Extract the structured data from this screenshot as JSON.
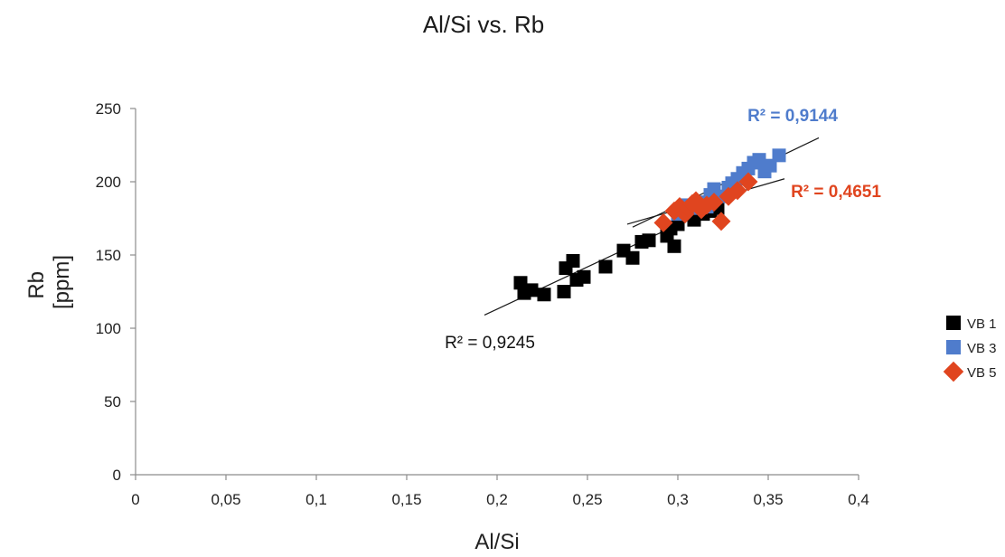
{
  "chart_data": {
    "type": "scatter",
    "title": "Al/Si vs. Rb",
    "xlabel": "Al/Si",
    "ylabel_lines": [
      "Rb",
      "[ppm]"
    ],
    "xlim": [
      0,
      0.4
    ],
    "ylim": [
      0,
      250
    ],
    "x_ticks": [
      0,
      0.05,
      0.1,
      0.15,
      0.2,
      0.25,
      0.3,
      0.35,
      0.4
    ],
    "x_tick_labels": [
      "0",
      "0,05",
      "0,1",
      "0,15",
      "0,2",
      "0,25",
      "0,3",
      "0,35",
      "0,4"
    ],
    "y_ticks": [
      0,
      50,
      100,
      150,
      200,
      250
    ],
    "y_tick_labels": [
      "0",
      "50",
      "100",
      "150",
      "200",
      "250"
    ],
    "grid": false,
    "legend_position": "right",
    "series": [
      {
        "name": "VB 1",
        "marker": "square",
        "color": "#000000",
        "points": [
          [
            0.213,
            131
          ],
          [
            0.215,
            124
          ],
          [
            0.219,
            126
          ],
          [
            0.226,
            123
          ],
          [
            0.237,
            125
          ],
          [
            0.238,
            141
          ],
          [
            0.242,
            146
          ],
          [
            0.244,
            133
          ],
          [
            0.248,
            135
          ],
          [
            0.26,
            142
          ],
          [
            0.27,
            153
          ],
          [
            0.275,
            148
          ],
          [
            0.28,
            159
          ],
          [
            0.284,
            160
          ],
          [
            0.294,
            163
          ],
          [
            0.296,
            168
          ],
          [
            0.298,
            156
          ],
          [
            0.3,
            171
          ],
          [
            0.309,
            174
          ],
          [
            0.314,
            178
          ],
          [
            0.318,
            180
          ],
          [
            0.322,
            182
          ]
        ],
        "trendline": {
          "x": [
            0.193,
            0.323
          ],
          "y": [
            109,
            184
          ]
        },
        "r2_label": "R² = 0,9245"
      },
      {
        "name": "VB 3",
        "marker": "square",
        "color": "#4f7ccc",
        "points": [
          [
            0.3,
            178
          ],
          [
            0.305,
            184
          ],
          [
            0.31,
            182
          ],
          [
            0.312,
            186
          ],
          [
            0.316,
            183
          ],
          [
            0.318,
            191
          ],
          [
            0.32,
            195
          ],
          [
            0.325,
            190
          ],
          [
            0.328,
            196
          ],
          [
            0.33,
            199
          ],
          [
            0.333,
            202
          ],
          [
            0.336,
            206
          ],
          [
            0.339,
            209
          ],
          [
            0.342,
            213
          ],
          [
            0.345,
            215
          ],
          [
            0.348,
            207
          ],
          [
            0.351,
            211
          ],
          [
            0.356,
            218
          ]
        ],
        "trendline": {
          "x": [
            0.275,
            0.378
          ],
          "y": [
            169,
            230
          ]
        },
        "r2_label": "R² = 0,9144"
      },
      {
        "name": "VB 5",
        "marker": "diamond",
        "color": "#e0451f",
        "points": [
          [
            0.292,
            172
          ],
          [
            0.298,
            180
          ],
          [
            0.301,
            183
          ],
          [
            0.304,
            178
          ],
          [
            0.306,
            182
          ],
          [
            0.308,
            185
          ],
          [
            0.31,
            187
          ],
          [
            0.313,
            181
          ],
          [
            0.316,
            184
          ],
          [
            0.32,
            186
          ],
          [
            0.324,
            173
          ],
          [
            0.328,
            190
          ],
          [
            0.333,
            194
          ],
          [
            0.339,
            200
          ]
        ],
        "trendline": {
          "x": [
            0.272,
            0.359
          ],
          "y": [
            171,
            202
          ]
        },
        "r2_label": "R² = 0,4651"
      }
    ]
  }
}
